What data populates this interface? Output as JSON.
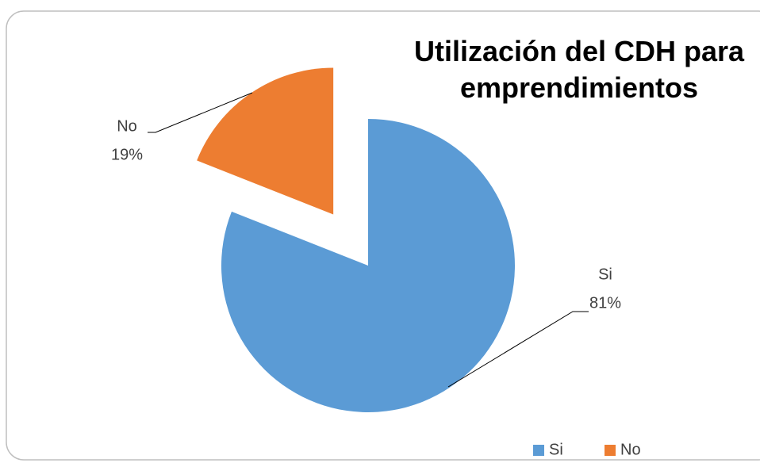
{
  "chart_data": {
    "type": "pie",
    "title": "Utilización del CDH para emprendimientos",
    "categories": [
      "Si",
      "No"
    ],
    "values": [
      81,
      19
    ],
    "value_labels": [
      "81%",
      "19%"
    ],
    "colors": [
      "#5b9bd5",
      "#ed7d31"
    ],
    "legend": "bottom-right"
  }
}
